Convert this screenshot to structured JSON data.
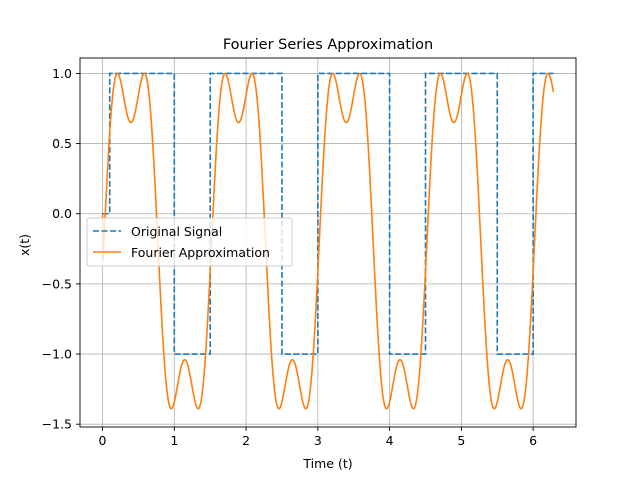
{
  "chart_data": {
    "type": "line",
    "title": "Fourier Series Approximation",
    "xlabel": "Time (t)",
    "ylabel": "x(t)",
    "xlim": [
      -0.314,
      6.597
    ],
    "ylim": [
      -1.52,
      1.11
    ],
    "xticks": [
      0,
      1,
      2,
      3,
      4,
      5,
      6
    ],
    "xtick_labels": [
      "0",
      "1",
      "2",
      "3",
      "4",
      "5",
      "6"
    ],
    "yticks": [
      -1.5,
      -1.0,
      -0.5,
      0.0,
      0.5,
      1.0
    ],
    "ytick_labels": [
      "−1.5",
      "−1.0",
      "−0.5",
      "0.0",
      "0.5",
      "1.0"
    ],
    "grid": true,
    "legend_position": "center-left",
    "x_range": [
      0,
      6.283
    ],
    "series": [
      {
        "name": "Original Signal",
        "color": "#1f77b4",
        "style": "dashed",
        "description_values": {
          "high": 1.0,
          "low": -1.0,
          "transitions_x": [
            0,
            0.1,
            1.0,
            1.5,
            2.5,
            3.0,
            4.0,
            4.5,
            5.5,
            6.0
          ],
          "levels_after_transition": [
            0,
            1,
            -1,
            1,
            -1,
            1,
            -1,
            1,
            -1,
            1
          ],
          "end_x": 6.283
        }
      },
      {
        "name": "Fourier Approximation",
        "color": "#ff7f0e",
        "style": "solid",
        "description_values": {
          "period": 1.5,
          "duty_high": 0.5,
          "mean": 0.333,
          "harmonics": 4,
          "high_peak": 1.0,
          "high_ripple_min": 0.75,
          "low_peak": -1.39,
          "end_value": 0.77
        }
      }
    ]
  }
}
